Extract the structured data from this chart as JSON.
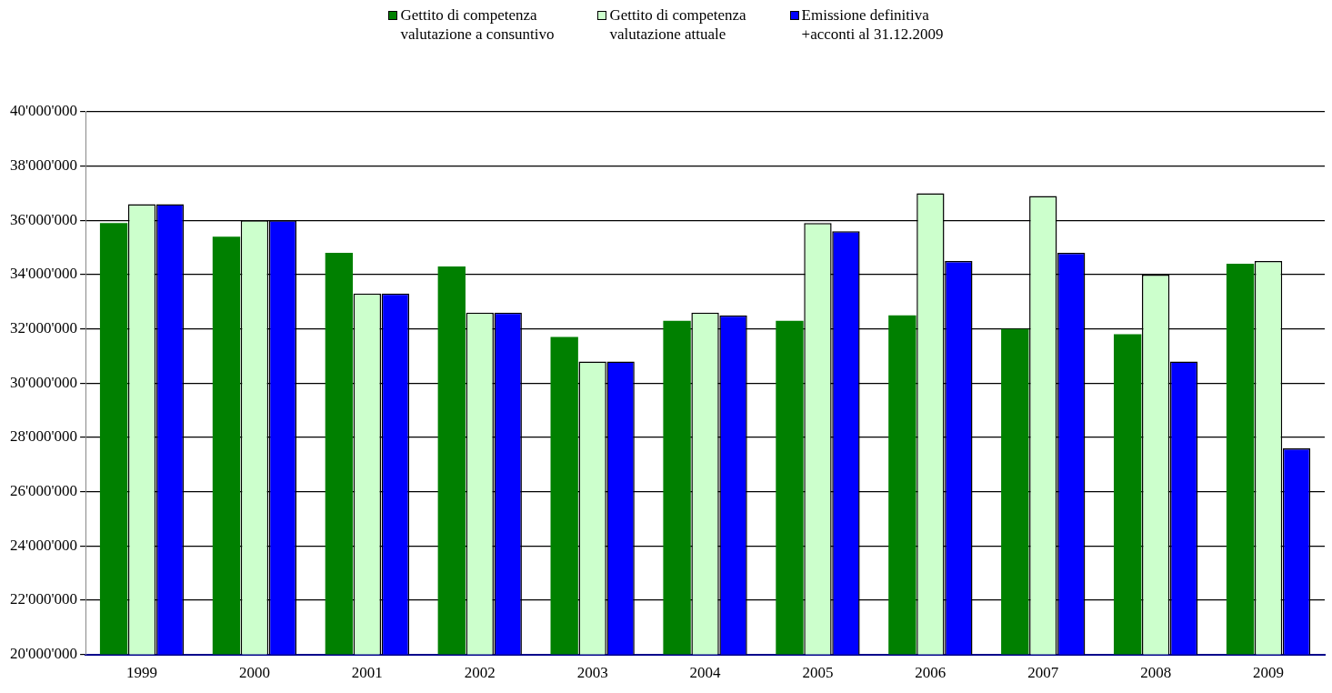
{
  "chart_data": {
    "type": "bar",
    "categories": [
      "1999",
      "2000",
      "2001",
      "2002",
      "2003",
      "2004",
      "2005",
      "2006",
      "2007",
      "2008",
      "2009"
    ],
    "series": [
      {
        "name": "Gettito di competenza\nvalutazione a consuntivo",
        "color": "#008000",
        "values": [
          35900000,
          35400000,
          34800000,
          34300000,
          31700000,
          32300000,
          32300000,
          32500000,
          32000000,
          31800000,
          34400000
        ]
      },
      {
        "name": "Gettito di competenza\nvalutazione attuale",
        "color": "#ccffcc",
        "values": [
          36600000,
          36000000,
          33300000,
          32600000,
          30800000,
          32600000,
          35900000,
          37000000,
          36900000,
          34000000,
          34500000
        ]
      },
      {
        "name": "Emissione definitiva\n+acconti al 31.12.2009",
        "color": "#0000ff",
        "values": [
          36600000,
          36000000,
          33300000,
          32600000,
          30800000,
          32500000,
          35600000,
          34500000,
          34800000,
          30800000,
          27600000
        ]
      }
    ],
    "ylim": [
      20000000,
      40000000
    ],
    "yticks": [
      {
        "value": 20000000,
        "label": "20'000'000"
      },
      {
        "value": 22000000,
        "label": "22'000'000"
      },
      {
        "value": 24000000,
        "label": "24'000'000"
      },
      {
        "value": 26000000,
        "label": "26'000'000"
      },
      {
        "value": 28000000,
        "label": "28'000'000"
      },
      {
        "value": 30000000,
        "label": "30'000'000"
      },
      {
        "value": 32000000,
        "label": "32'000'000"
      },
      {
        "value": 34000000,
        "label": "34'000'000"
      },
      {
        "value": 36000000,
        "label": "36'000'000"
      },
      {
        "value": 38000000,
        "label": "38'000'000"
      },
      {
        "value": 40000000,
        "label": "40'000'000"
      }
    ],
    "grid": "y",
    "legend": "top"
  }
}
